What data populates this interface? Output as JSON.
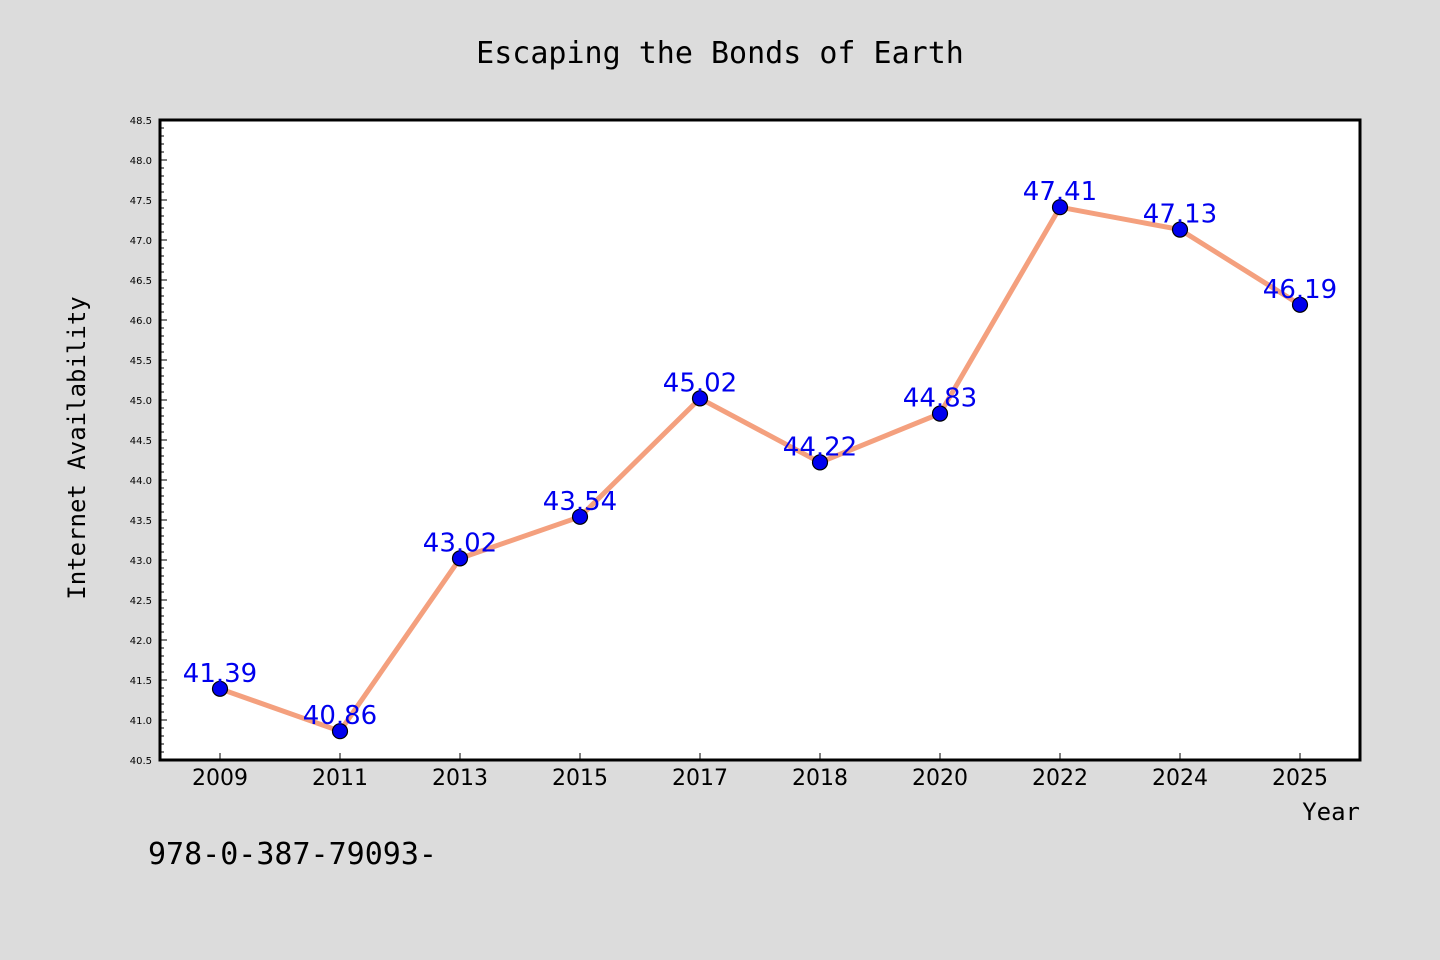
{
  "chart_data": {
    "type": "line",
    "title": "Escaping the Bonds of Earth",
    "xlabel": "Year",
    "ylabel": "Internet Availability",
    "categories": [
      "2009",
      "2011",
      "2013",
      "2015",
      "2017",
      "2018",
      "2020",
      "2022",
      "2024",
      "2025"
    ],
    "values": [
      41.39,
      40.86,
      43.02,
      43.54,
      45.02,
      44.22,
      44.83,
      47.41,
      47.13,
      46.19
    ],
    "data_labels": [
      "41.39",
      "40.86",
      "43.02",
      "43.54",
      "45.02",
      "44.22",
      "44.83",
      "47.41",
      "47.13",
      "46.19"
    ],
    "ylim": [
      40.5,
      48.5
    ],
    "y_ticks": [
      "40.5",
      "41.0",
      "41.5",
      "42.0",
      "42.5",
      "43.0",
      "43.5",
      "44.0",
      "44.5",
      "45.0",
      "45.5",
      "46.0",
      "46.5",
      "47.0",
      "47.5",
      "48.0",
      "48.5"
    ],
    "grid": false,
    "line_color": "#f4a07e",
    "marker_color": "#0000ee",
    "label_color": "#0000ee"
  },
  "footer_text": "978-0-387-79093-"
}
